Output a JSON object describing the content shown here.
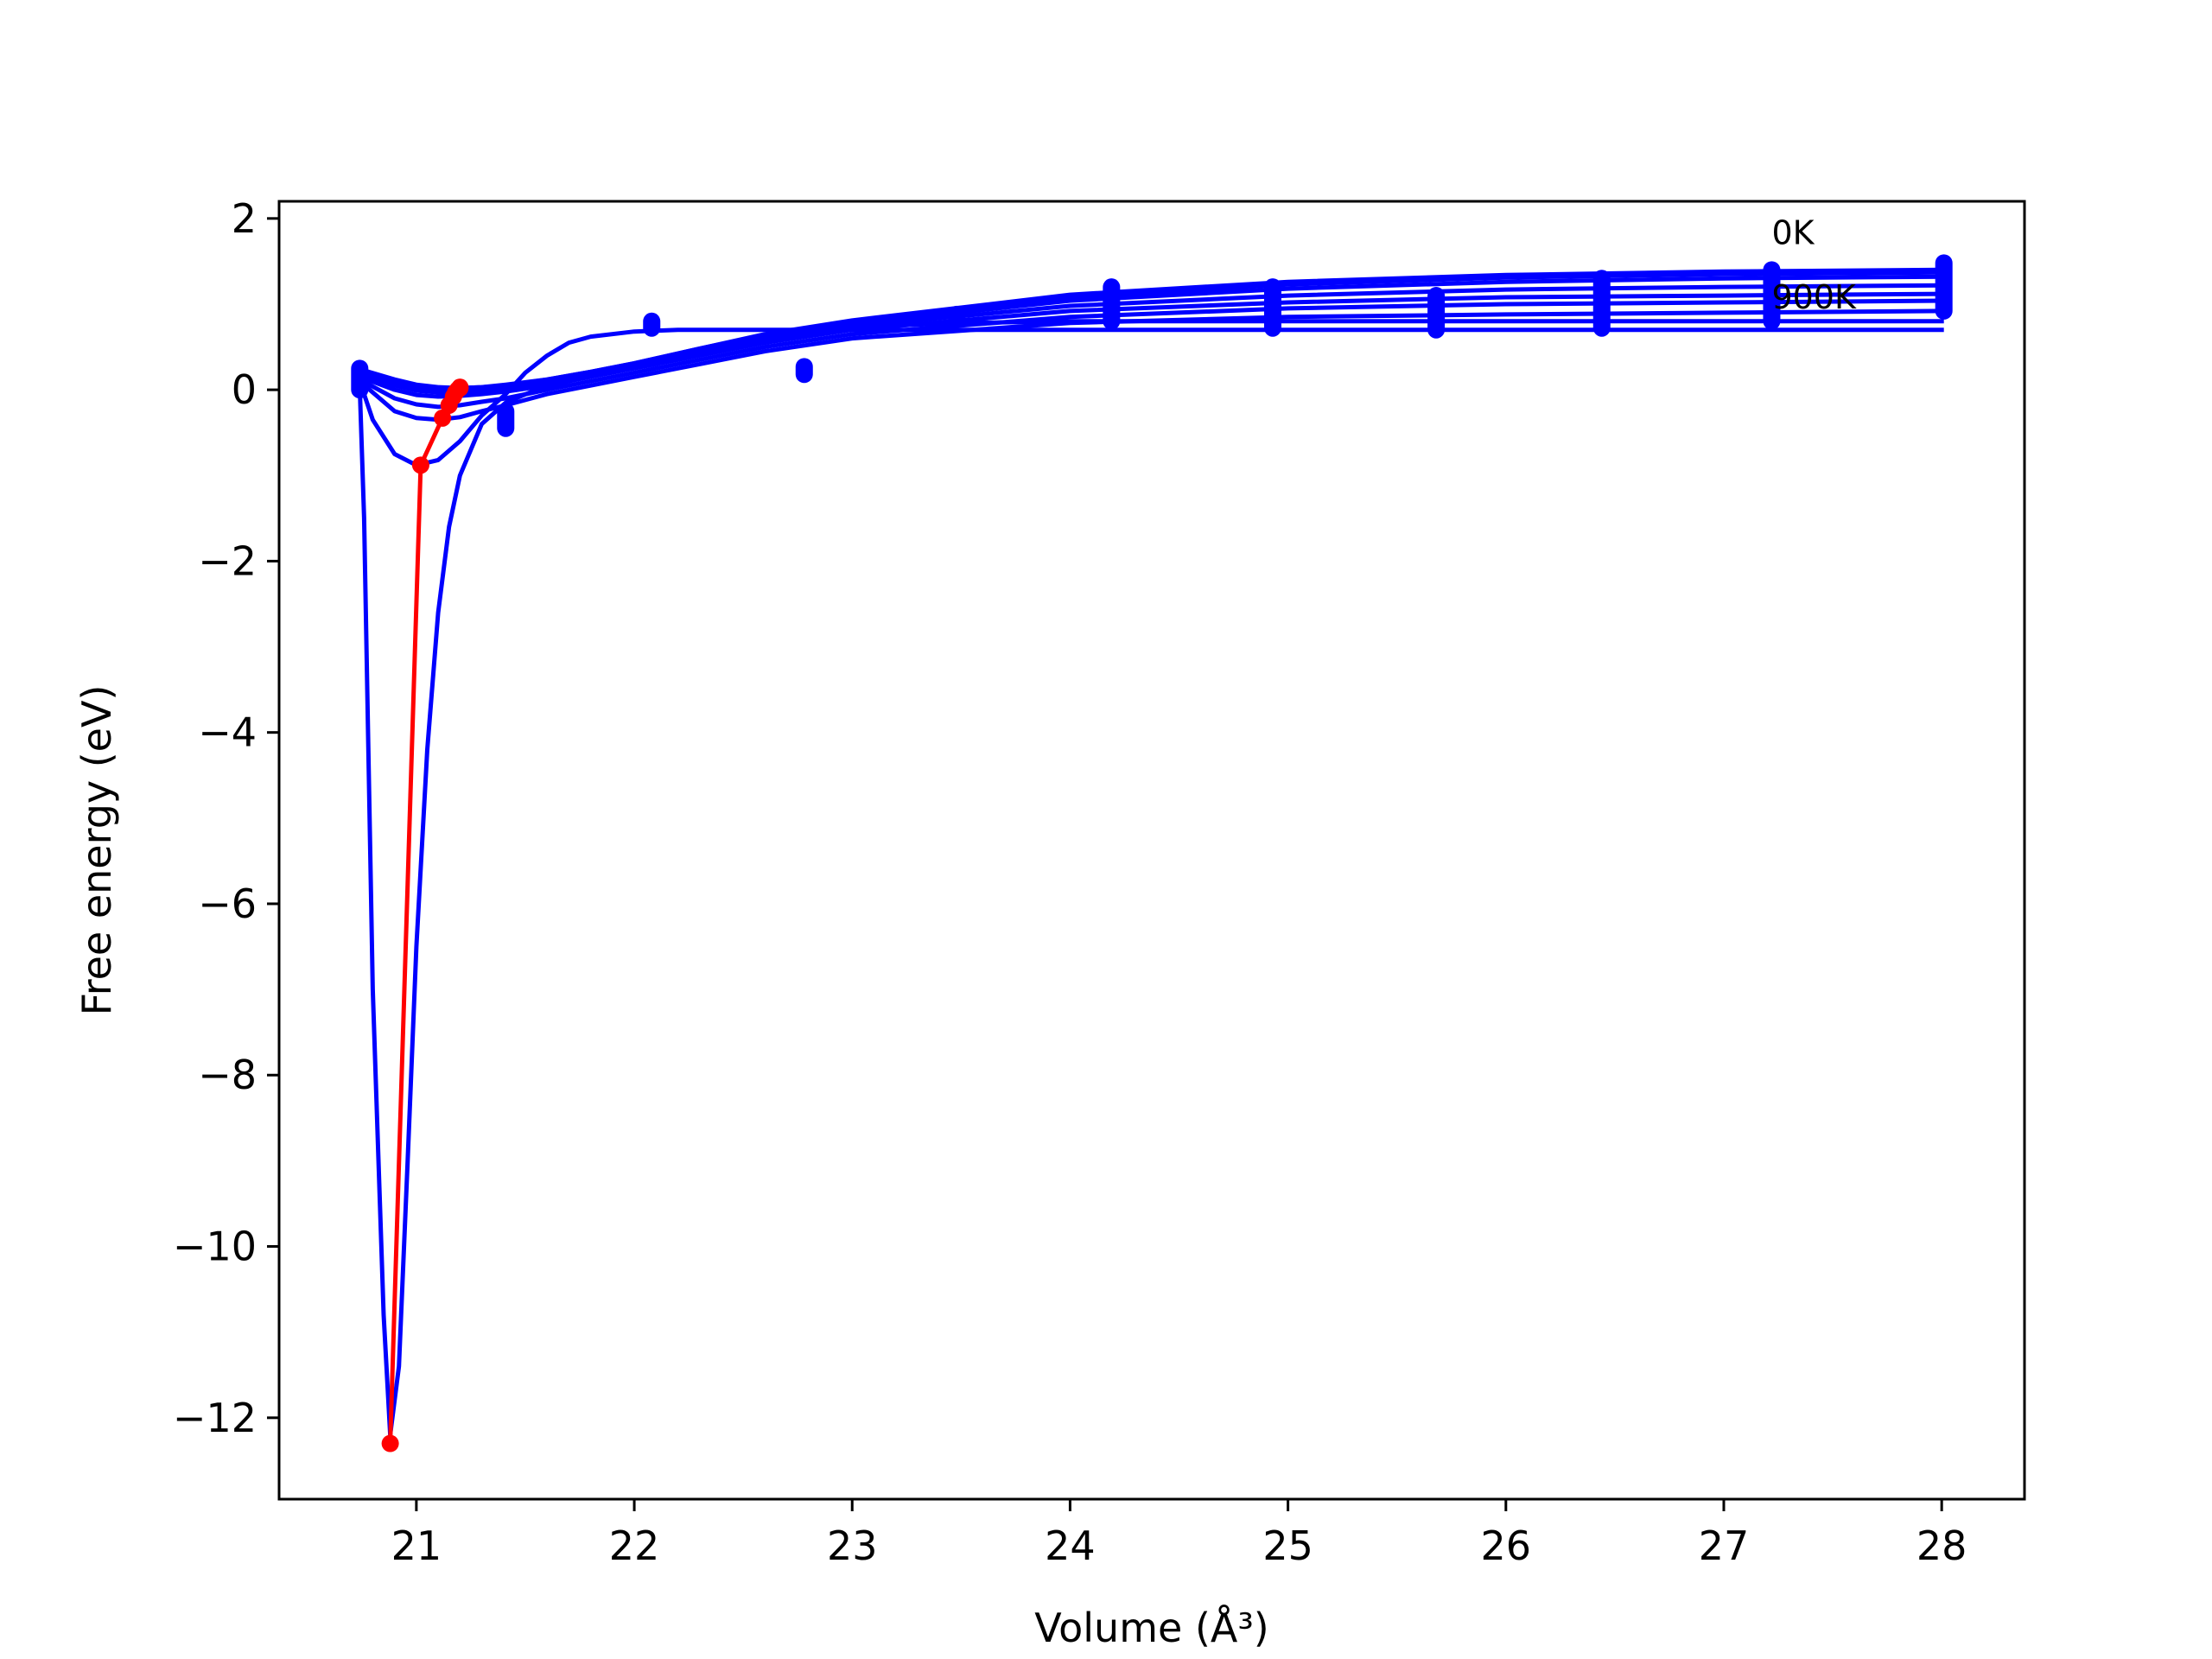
{
  "chart_data": {
    "type": "line",
    "title": "",
    "xlabel": "Volume (Å³)",
    "ylabel": "Free energy (eV)",
    "xlim": [
      20.37,
      28.38
    ],
    "ylim": [
      -12.95,
      2.2
    ],
    "x_ticks": [
      21,
      22,
      23,
      24,
      25,
      26,
      27,
      28
    ],
    "y_ticks": [
      2,
      0,
      -2,
      -4,
      -6,
      -8,
      -10,
      -12
    ],
    "x_tick_labels": [
      "21",
      "22",
      "23",
      "24",
      "25",
      "26",
      "27",
      "28"
    ],
    "y_tick_labels": [
      "2",
      "0",
      "−2",
      "−4",
      "−6",
      "−8",
      "−10",
      "−12"
    ],
    "grid": false,
    "legend": "none",
    "annotations": [
      {
        "text": "0K",
        "x": 27.22,
        "y": 1.7
      },
      {
        "text": "900K",
        "x": 27.22,
        "y": 0.95
      }
    ],
    "colors": {
      "fit": "#0000ff",
      "data": "#0000ff",
      "minima": "#ff0000"
    },
    "data_points": {
      "x": [
        20.74,
        21.41,
        22.08,
        22.78,
        23.48,
        24.19,
        24.93,
        25.68,
        26.44,
        27.22,
        28.01
      ],
      "y_ranges": [
        [
          0.0,
          0.25
        ],
        [
          -0.45,
          -0.25
        ],
        [
          0.72,
          0.8
        ],
        [
          0.18,
          0.27
        ],
        [
          0.85,
          0.88
        ],
        [
          0.8,
          1.2
        ],
        [
          0.72,
          1.2
        ],
        [
          0.7,
          1.1
        ],
        [
          0.72,
          1.3
        ],
        [
          0.8,
          1.4
        ],
        [
          0.92,
          1.48
        ]
      ]
    },
    "series": [
      {
        "x": [
          20.74,
          20.76,
          20.8,
          20.85,
          20.88,
          20.92,
          20.96,
          21.0,
          21.05,
          21.1,
          21.15,
          21.2,
          21.3,
          21.41,
          21.55,
          21.7,
          21.85,
          22.0,
          22.2,
          22.5,
          22.8,
          23.0,
          23.5,
          24.0,
          24.5,
          25.0,
          26.0,
          27.0,
          28.01
        ],
        "y": [
          0.05,
          -1.5,
          -7.0,
          -10.8,
          -12.2,
          -11.4,
          -9.0,
          -6.5,
          -4.2,
          -2.6,
          -1.6,
          -1.0,
          -0.4,
          -0.15,
          0.0,
          0.1,
          0.2,
          0.3,
          0.4,
          0.55,
          0.68,
          0.73,
          0.78,
          0.8,
          0.8,
          0.8,
          0.8,
          0.8,
          0.8
        ]
      },
      {
        "x": [
          20.74,
          20.8,
          20.9,
          21.0,
          21.1,
          21.2,
          21.3,
          21.41,
          21.5,
          21.6,
          21.7,
          21.8,
          22.0,
          22.2,
          22.5,
          23.0,
          24.0,
          25.0,
          26.0,
          27.0,
          28.01
        ],
        "y": [
          0.1,
          -0.35,
          -0.75,
          -0.88,
          -0.82,
          -0.6,
          -0.3,
          -0.05,
          0.2,
          0.4,
          0.55,
          0.62,
          0.68,
          0.7,
          0.7,
          0.7,
          0.7,
          0.7,
          0.7,
          0.7,
          0.7
        ]
      },
      {
        "x": [
          20.74,
          20.9,
          21.0,
          21.1,
          21.2,
          21.3,
          21.41,
          21.6,
          21.8,
          22.0,
          22.3,
          22.6,
          23.0,
          24.0,
          25.0,
          26.0,
          27.0,
          28.01
        ],
        "y": [
          0.1,
          -0.25,
          -0.33,
          -0.35,
          -0.32,
          -0.25,
          -0.18,
          -0.05,
          0.05,
          0.15,
          0.3,
          0.45,
          0.6,
          0.78,
          0.85,
          0.88,
          0.9,
          0.92
        ]
      },
      {
        "x": [
          20.74,
          20.9,
          21.0,
          21.1,
          21.2,
          21.3,
          21.41,
          21.6,
          21.8,
          22.0,
          22.3,
          22.6,
          23.0,
          24.0,
          25.0,
          26.0,
          27.0,
          28.01
        ],
        "y": [
          0.12,
          -0.1,
          -0.17,
          -0.2,
          -0.18,
          -0.14,
          -0.1,
          0.0,
          0.1,
          0.2,
          0.35,
          0.5,
          0.65,
          0.85,
          0.95,
          1.0,
          1.02,
          1.04
        ]
      },
      {
        "x": [
          20.74,
          20.9,
          21.0,
          21.1,
          21.2,
          21.3,
          21.41,
          21.6,
          21.8,
          22.0,
          22.3,
          22.6,
          23.0,
          24.0,
          25.0,
          26.0,
          27.0,
          28.01
        ],
        "y": [
          0.15,
          0.0,
          -0.06,
          -0.08,
          -0.07,
          -0.05,
          -0.02,
          0.05,
          0.15,
          0.25,
          0.4,
          0.55,
          0.7,
          0.92,
          1.02,
          1.08,
          1.1,
          1.12
        ]
      },
      {
        "x": [
          20.74,
          20.9,
          21.0,
          21.1,
          21.2,
          21.3,
          21.41,
          21.6,
          21.8,
          22.0,
          22.3,
          22.6,
          23.0,
          24.0,
          25.0,
          26.0,
          27.0,
          28.01
        ],
        "y": [
          0.18,
          0.05,
          -0.01,
          -0.03,
          -0.03,
          -0.01,
          0.02,
          0.08,
          0.17,
          0.27,
          0.43,
          0.58,
          0.74,
          0.98,
          1.1,
          1.17,
          1.2,
          1.22
        ]
      },
      {
        "x": [
          20.74,
          20.9,
          21.0,
          21.1,
          21.2,
          21.3,
          21.41,
          21.6,
          21.8,
          22.0,
          22.3,
          22.6,
          23.0,
          24.0,
          25.0,
          26.0,
          27.0,
          28.01
        ],
        "y": [
          0.2,
          0.08,
          0.02,
          0.0,
          0.0,
          0.01,
          0.04,
          0.1,
          0.19,
          0.29,
          0.45,
          0.61,
          0.77,
          1.04,
          1.18,
          1.26,
          1.3,
          1.32
        ]
      },
      {
        "x": [
          20.74,
          20.9,
          21.0,
          21.1,
          21.2,
          21.3,
          21.41,
          21.6,
          21.8,
          22.0,
          22.3,
          22.6,
          23.0,
          24.0,
          25.0,
          26.0,
          27.0,
          28.01
        ],
        "y": [
          0.22,
          0.1,
          0.04,
          0.02,
          0.01,
          0.02,
          0.05,
          0.11,
          0.2,
          0.3,
          0.47,
          0.63,
          0.79,
          1.08,
          1.23,
          1.31,
          1.35,
          1.37
        ]
      },
      {
        "x": [
          20.74,
          20.9,
          21.0,
          21.1,
          21.2,
          21.3,
          21.41,
          21.6,
          21.8,
          22.0,
          22.3,
          22.6,
          23.0,
          24.0,
          25.0,
          26.0,
          27.0,
          28.01
        ],
        "y": [
          0.23,
          0.11,
          0.05,
          0.02,
          0.02,
          0.03,
          0.05,
          0.12,
          0.21,
          0.31,
          0.48,
          0.64,
          0.8,
          1.1,
          1.25,
          1.33,
          1.37,
          1.39
        ]
      },
      {
        "x": [
          20.74,
          20.9,
          21.0,
          21.1,
          21.2,
          21.3,
          21.41,
          21.6,
          21.8,
          22.0,
          22.3,
          22.6,
          23.0,
          24.0,
          25.0,
          26.0,
          27.0,
          28.01
        ],
        "y": [
          0.24,
          0.12,
          0.06,
          0.03,
          0.02,
          0.03,
          0.06,
          0.12,
          0.21,
          0.31,
          0.48,
          0.65,
          0.81,
          1.11,
          1.26,
          1.34,
          1.38,
          1.4
        ]
      }
    ],
    "minima": {
      "x": [
        20.88,
        21.02,
        21.12,
        21.15,
        21.17,
        21.18,
        21.19,
        21.2,
        21.2
      ],
      "y": [
        -12.3,
        -0.88,
        -0.33,
        -0.18,
        -0.08,
        -0.03,
        0.0,
        0.02,
        0.03
      ]
    }
  }
}
